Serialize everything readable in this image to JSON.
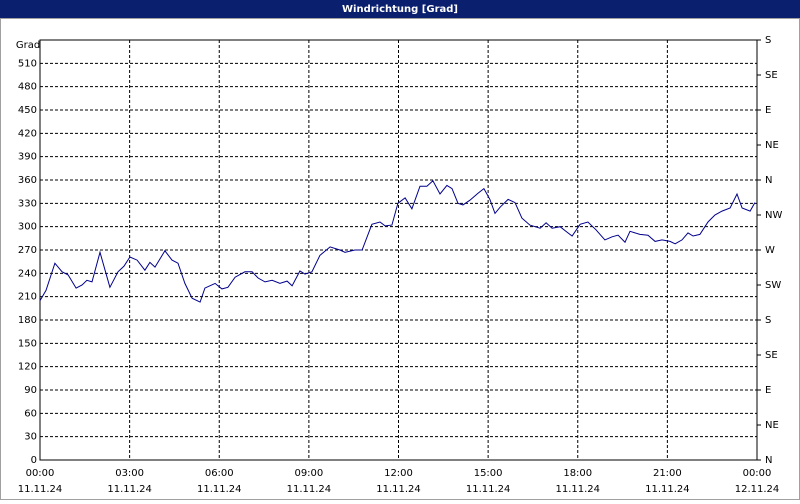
{
  "chart_data": {
    "type": "line",
    "title": "Windrichtung [Grad]",
    "ylabel": "Grad",
    "x": [
      0,
      0.2,
      0.5,
      0.74,
      0.94,
      1.21,
      1.41,
      1.57,
      1.74,
      2.01,
      2.34,
      2.61,
      2.81,
      3.01,
      3.25,
      3.51,
      3.68,
      3.85,
      4.18,
      4.42,
      4.62,
      4.85,
      5.09,
      5.36,
      5.52,
      5.86,
      6.09,
      6.29,
      6.53,
      6.86,
      7.1,
      7.3,
      7.53,
      7.77,
      8.03,
      8.27,
      8.44,
      8.7,
      8.87,
      9.1,
      9.37,
      9.71,
      10.04,
      10.21,
      10.54,
      10.78,
      11.11,
      11.38,
      11.55,
      11.78,
      11.98,
      12.22,
      12.45,
      12.72,
      12.95,
      13.15,
      13.39,
      13.62,
      13.79,
      13.99,
      14.16,
      14.39,
      14.66,
      14.86,
      15.06,
      15.23,
      15.4,
      15.67,
      15.9,
      16.13,
      16.4,
      16.74,
      16.94,
      17.14,
      17.41,
      17.64,
      17.81,
      18.08,
      18.34,
      18.61,
      18.91,
      19.15,
      19.35,
      19.58,
      19.75,
      20.08,
      20.35,
      20.59,
      20.82,
      21.09,
      21.26,
      21.49,
      21.69,
      21.86,
      22.09,
      22.36,
      22.59,
      22.83,
      23.1,
      23.33,
      23.5,
      23.77,
      23.93
    ],
    "series": [
      {
        "name": "Windrichtung",
        "color": "#00008b",
        "values": [
          205,
          218,
          253,
          242,
          238,
          221,
          225,
          231,
          229,
          267,
          222,
          242,
          249,
          261,
          257,
          244,
          254,
          248,
          269,
          257,
          253,
          227,
          208,
          203,
          221,
          227,
          220,
          222,
          235,
          242,
          242,
          234,
          229,
          231,
          227,
          230,
          224,
          243,
          239,
          242,
          263,
          274,
          270,
          267,
          270,
          270,
          303,
          306,
          301,
          302,
          330,
          337,
          323,
          352,
          352,
          359,
          342,
          353,
          349,
          330,
          328,
          334,
          343,
          349,
          335,
          317,
          325,
          335,
          331,
          311,
          302,
          298,
          305,
          298,
          300,
          293,
          288,
          303,
          306,
          296,
          283,
          287,
          289,
          280,
          294,
          290,
          289,
          281,
          283,
          281,
          278,
          283,
          292,
          288,
          290,
          306,
          315,
          320,
          324,
          342,
          324,
          320,
          331
        ]
      }
    ],
    "xlim": [
      0,
      24
    ],
    "xticks": [
      {
        "value": 0,
        "label": "00:00"
      },
      {
        "value": 3,
        "label": "03:00"
      },
      {
        "value": 6,
        "label": "06:00"
      },
      {
        "value": 9,
        "label": "09:00"
      },
      {
        "value": 12,
        "label": "12:00"
      },
      {
        "value": 15,
        "label": "15:00"
      },
      {
        "value": 18,
        "label": "18:00"
      },
      {
        "value": 21,
        "label": "21:00"
      },
      {
        "value": 24,
        "label": "00:00"
      }
    ],
    "xtick_dates": [
      "11.11.24",
      "11.11.24",
      "11.11.24",
      "11.11.24",
      "11.11.24",
      "11.11.24",
      "11.11.24",
      "11.11.24",
      "12.11.24"
    ],
    "ylim": [
      0,
      540
    ],
    "yticks": [
      0,
      30,
      60,
      90,
      120,
      150,
      180,
      210,
      240,
      270,
      300,
      330,
      360,
      390,
      420,
      450,
      480,
      510
    ],
    "y2lim": [
      0,
      540
    ],
    "y2ticks": [
      {
        "value": 0,
        "label": "N"
      },
      {
        "value": 45,
        "label": "NE"
      },
      {
        "value": 90,
        "label": "E"
      },
      {
        "value": 135,
        "label": "SE"
      },
      {
        "value": 180,
        "label": "S"
      },
      {
        "value": 225,
        "label": "SW"
      },
      {
        "value": 270,
        "label": "W"
      },
      {
        "value": 315,
        "label": "NW"
      },
      {
        "value": 360,
        "label": "N"
      },
      {
        "value": 405,
        "label": "NE"
      },
      {
        "value": 450,
        "label": "E"
      },
      {
        "value": 495,
        "label": "SE"
      },
      {
        "value": 540,
        "label": "S"
      }
    ],
    "grid": true
  }
}
